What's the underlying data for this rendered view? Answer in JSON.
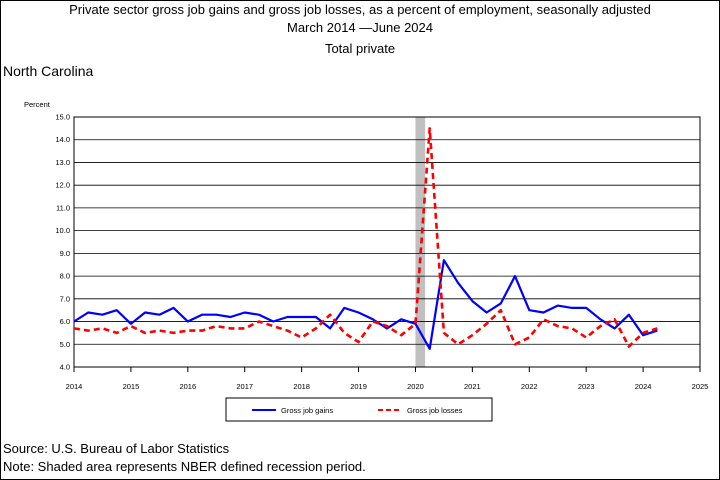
{
  "header": {
    "title": "Private sector gross job gains and gross job losses, as a percent of employment, seasonally adjusted",
    "subtitle": "March 2014 —June 2024",
    "series_label": "Total private",
    "region": "North Carolina"
  },
  "footer": {
    "source": "Source: U.S. Bureau of Labor Statistics",
    "note": "Note: Shaded area represents NBER defined recession period."
  },
  "colors": {
    "gains": "#0000ff",
    "losses": "#ff0000",
    "recession": "#c0c0c0",
    "grid": "#000000"
  },
  "chart_data": {
    "type": "line",
    "title": "Private sector gross job gains and gross job losses, as a percent of employment, seasonally adjusted",
    "ylabel": "Percent",
    "xlabel": "",
    "xlim": [
      2014,
      2025
    ],
    "ylim": [
      4.0,
      15.0
    ],
    "x_ticks": [
      "2014",
      "2015",
      "2016",
      "2017",
      "2018",
      "2019",
      "2020",
      "2021",
      "2022",
      "2023",
      "2024",
      "2025"
    ],
    "y_ticks": [
      "4.0",
      "5.0",
      "6.0",
      "7.0",
      "8.0",
      "9.0",
      "10.0",
      "11.0",
      "12.0",
      "13.0",
      "14.0",
      "15.0"
    ],
    "grid": true,
    "legend_position": "bottom",
    "recession_shading": [
      2020.0,
      2020.17
    ],
    "series": [
      {
        "name": "Gross job gains",
        "style": "solid",
        "x": [
          2014.0,
          2014.25,
          2014.5,
          2014.75,
          2015.0,
          2015.25,
          2015.5,
          2015.75,
          2016.0,
          2016.25,
          2016.5,
          2016.75,
          2017.0,
          2017.25,
          2017.5,
          2017.75,
          2018.0,
          2018.25,
          2018.5,
          2018.75,
          2019.0,
          2019.25,
          2019.5,
          2019.75,
          2020.0,
          2020.25,
          2020.5,
          2020.75,
          2021.0,
          2021.25,
          2021.5,
          2021.75,
          2022.0,
          2022.25,
          2022.5,
          2022.75,
          2023.0,
          2023.25,
          2023.5,
          2023.75,
          2024.0,
          2024.25
        ],
        "values": [
          6.0,
          6.4,
          6.3,
          6.5,
          5.9,
          6.4,
          6.3,
          6.6,
          6.0,
          6.3,
          6.3,
          6.2,
          6.4,
          6.3,
          6.0,
          6.2,
          6.2,
          6.2,
          5.7,
          6.6,
          6.4,
          6.1,
          5.7,
          6.1,
          5.9,
          4.8,
          8.7,
          7.7,
          6.9,
          6.4,
          6.8,
          8.0,
          6.5,
          6.4,
          6.7,
          6.6,
          6.6,
          6.1,
          5.7,
          6.3,
          5.4,
          5.6
        ]
      },
      {
        "name": "Gross job losses",
        "style": "dashed",
        "x": [
          2014.0,
          2014.25,
          2014.5,
          2014.75,
          2015.0,
          2015.25,
          2015.5,
          2015.75,
          2016.0,
          2016.25,
          2016.5,
          2016.75,
          2017.0,
          2017.25,
          2017.5,
          2017.75,
          2018.0,
          2018.25,
          2018.5,
          2018.75,
          2019.0,
          2019.25,
          2019.5,
          2019.75,
          2020.0,
          2020.25,
          2020.5,
          2020.75,
          2021.0,
          2021.25,
          2021.5,
          2021.75,
          2022.0,
          2022.25,
          2022.5,
          2022.75,
          2023.0,
          2023.25,
          2023.5,
          2023.75,
          2024.0,
          2024.25
        ],
        "values": [
          5.7,
          5.6,
          5.7,
          5.5,
          5.8,
          5.5,
          5.6,
          5.5,
          5.6,
          5.6,
          5.8,
          5.7,
          5.7,
          6.0,
          5.8,
          5.6,
          5.3,
          5.7,
          6.3,
          5.5,
          5.1,
          6.0,
          5.8,
          5.4,
          5.9,
          14.5,
          5.5,
          5.0,
          5.4,
          5.9,
          6.5,
          5.0,
          5.3,
          6.1,
          5.8,
          5.7,
          5.3,
          5.8,
          6.1,
          4.9,
          5.5,
          5.7
        ]
      }
    ]
  }
}
